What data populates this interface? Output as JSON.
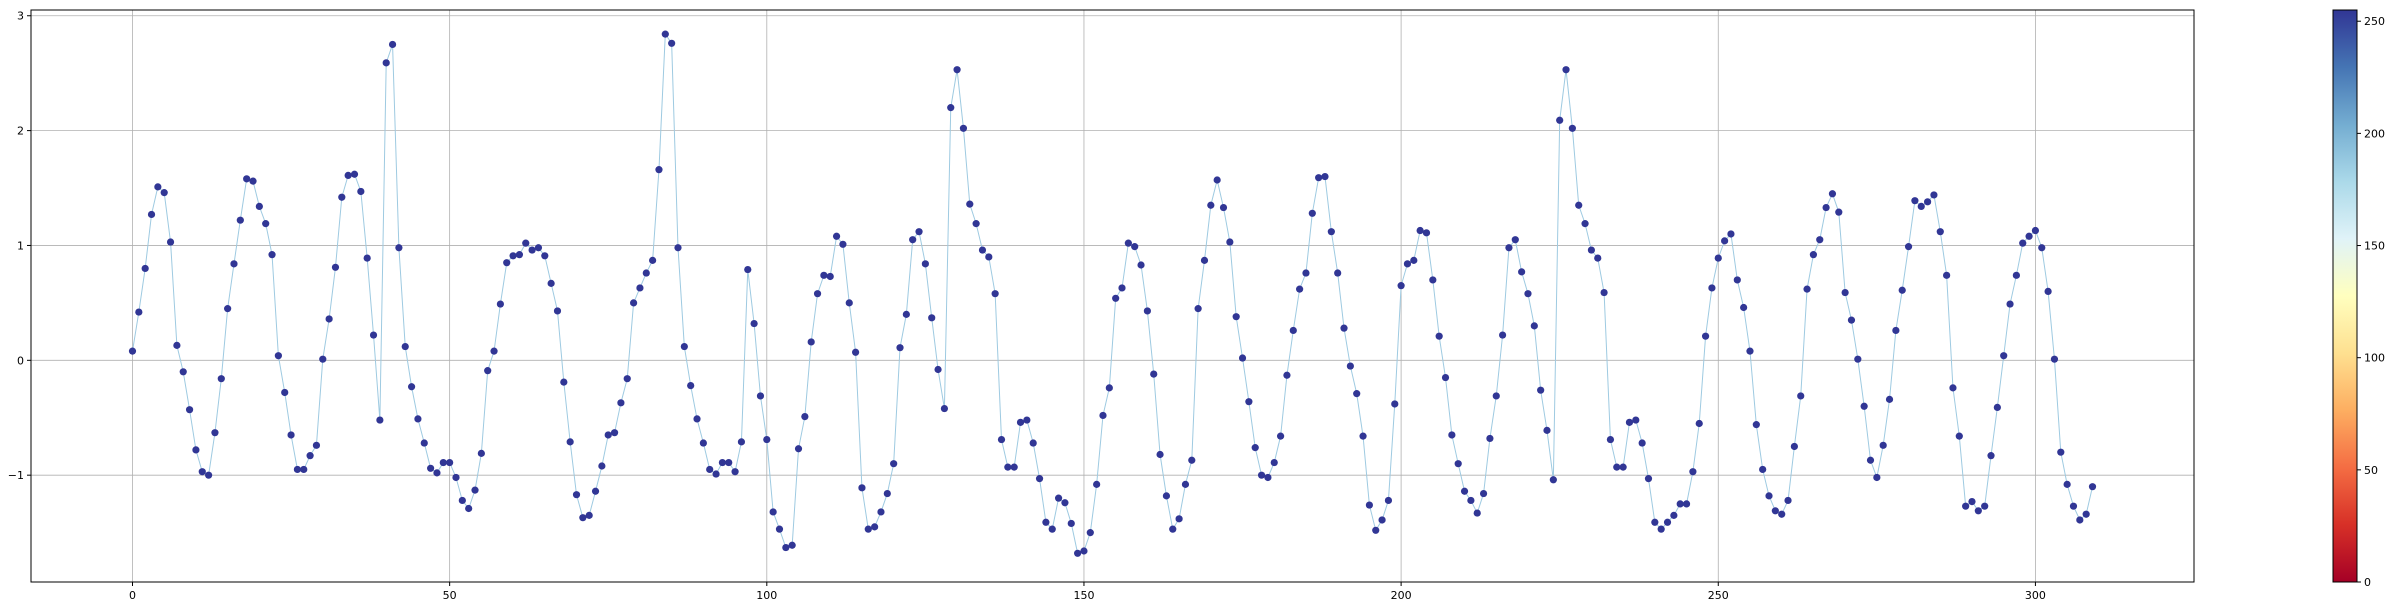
{
  "chart_data": {
    "type": "scatter",
    "title": "",
    "xlabel": "",
    "ylabel": "",
    "xlim": [
      -16,
      325
    ],
    "ylim": [
      -1.93,
      3.05
    ],
    "grid": true,
    "x_ticks": [
      0,
      50,
      100,
      150,
      200,
      250,
      300
    ],
    "y_ticks": [
      -1,
      0,
      1,
      2,
      3
    ],
    "x_tick_labels": [
      "0",
      "50",
      "100",
      "150",
      "200",
      "250",
      "300"
    ],
    "y_tick_labels": [
      "−1",
      "0",
      "1",
      "2",
      "3"
    ],
    "colors": {
      "line": "#9ecae1",
      "marker": "#313695",
      "frame": "#000000",
      "grid": "#b0b0b0"
    },
    "colorbar": {
      "cmap": "RdYlBu",
      "range": [
        0,
        255
      ],
      "ticks": [
        0,
        50,
        100,
        150,
        200,
        250
      ],
      "tick_labels": [
        "0",
        "50",
        "100",
        "150",
        "200",
        "250"
      ],
      "stops": [
        "#a50026",
        "#d73027",
        "#f46d43",
        "#fdae61",
        "#fee090",
        "#ffffbf",
        "#e0f3f8",
        "#abd9e9",
        "#74add1",
        "#4575b4",
        "#313695"
      ]
    },
    "series": [
      {
        "x_start": 0,
        "values": [
          0.08,
          0.42,
          0.8,
          1.27,
          1.51,
          1.46,
          1.03,
          0.13,
          -0.1,
          -0.43,
          -0.78,
          -0.97,
          -1.0,
          -0.63,
          -0.16,
          0.45,
          0.84,
          1.22,
          1.58,
          1.56,
          1.34,
          1.19,
          0.92,
          0.04,
          -0.28,
          -0.65,
          -0.95,
          -0.95,
          -0.83,
          -0.74,
          0.01,
          0.36,
          0.81,
          1.42,
          1.61,
          1.62,
          1.47,
          0.89,
          0.22,
          -0.52,
          2.59,
          2.75,
          0.98,
          0.12,
          -0.23,
          -0.51,
          -0.72,
          -0.94,
          -0.98,
          -0.89,
          -0.89,
          -1.02,
          -1.22,
          -1.29,
          -1.13,
          -0.81,
          -0.09,
          0.08,
          0.49,
          0.85,
          0.91,
          0.92,
          1.02,
          0.96,
          0.98,
          0.91,
          0.67,
          0.43,
          -0.19,
          -0.71,
          -1.17,
          -1.37,
          -1.35,
          -1.14,
          -0.92,
          -0.65,
          -0.63,
          -0.37,
          -0.16,
          0.5,
          0.63,
          0.76,
          0.87,
          1.66,
          2.84,
          2.76,
          0.98,
          0.12,
          -0.22,
          -0.51,
          -0.72,
          -0.95,
          -0.99,
          -0.89,
          -0.89,
          -0.97,
          -0.71,
          0.79,
          0.32,
          -0.31,
          -0.69,
          -1.32,
          -1.47,
          -1.63,
          -1.61,
          -0.77,
          -0.49,
          0.16,
          0.58,
          0.74,
          0.73,
          1.08,
          1.01,
          0.5,
          0.07,
          -1.11,
          -1.47,
          -1.45,
          -1.32,
          -1.16,
          -0.9,
          0.11,
          0.4,
          1.05,
          1.12,
          0.84,
          0.37,
          -0.08,
          -0.42,
          2.2,
          2.53,
          2.02,
          1.36,
          1.19,
          0.96,
          0.9,
          0.58,
          -0.69,
          -0.93,
          -0.93,
          -0.54,
          -0.52,
          -0.72,
          -1.03,
          -1.41,
          -1.47,
          -1.2,
          -1.24,
          -1.42,
          -1.68,
          -1.66,
          -1.5,
          -1.08,
          -0.48,
          -0.24,
          0.54,
          0.63,
          1.02,
          0.99,
          0.83,
          0.43,
          -0.12,
          -0.82,
          -1.18,
          -1.47,
          -1.38,
          -1.08,
          -0.87,
          0.45,
          0.87,
          1.35,
          1.57,
          1.33,
          1.03,
          0.38,
          0.02,
          -0.36,
          -0.76,
          -1.0,
          -1.02,
          -0.89,
          -0.66,
          -0.13,
          0.26,
          0.62,
          0.76,
          1.28,
          1.59,
          1.6,
          1.12,
          0.76,
          0.28,
          -0.05,
          -0.29,
          -0.66,
          -1.26,
          -1.48,
          -1.39,
          -1.22,
          -0.38,
          0.65,
          0.84,
          0.87,
          1.13,
          1.11,
          0.7,
          0.21,
          -0.15,
          -0.65,
          -0.9,
          -1.14,
          -1.22,
          -1.33,
          -1.16,
          -0.68,
          -0.31,
          0.22,
          0.98,
          1.05,
          0.77,
          0.58,
          0.3,
          -0.26,
          -0.61,
          -1.04,
          2.09,
          2.53,
          2.02,
          1.35,
          1.19,
          0.96,
          0.89,
          0.59,
          -0.69,
          -0.93,
          -0.93,
          -0.54,
          -0.52,
          -0.72,
          -1.03,
          -1.41,
          -1.47,
          -1.41,
          -1.35,
          -1.25,
          -1.25,
          -0.97,
          -0.55,
          0.21,
          0.63,
          0.89,
          1.04,
          1.1,
          0.7,
          0.46,
          0.08,
          -0.56,
          -0.95,
          -1.18,
          -1.31,
          -1.34,
          -1.22,
          -0.75,
          -0.31,
          0.62,
          0.92,
          1.05,
          1.33,
          1.45,
          1.29,
          0.59,
          0.35,
          0.01,
          -0.4,
          -0.87,
          -1.02,
          -0.74,
          -0.34,
          0.26,
          0.61,
          0.99,
          1.39,
          1.34,
          1.38,
          1.44,
          1.12,
          0.74,
          -0.24,
          -0.66,
          -1.27,
          -1.23,
          -1.31,
          -1.27,
          -0.83,
          -0.41,
          0.04,
          0.49,
          0.74,
          1.02,
          1.08,
          1.13,
          0.98,
          0.6,
          0.01,
          -0.8,
          -1.08,
          -1.27,
          -1.39,
          -1.34,
          -1.1
        ]
      }
    ]
  }
}
